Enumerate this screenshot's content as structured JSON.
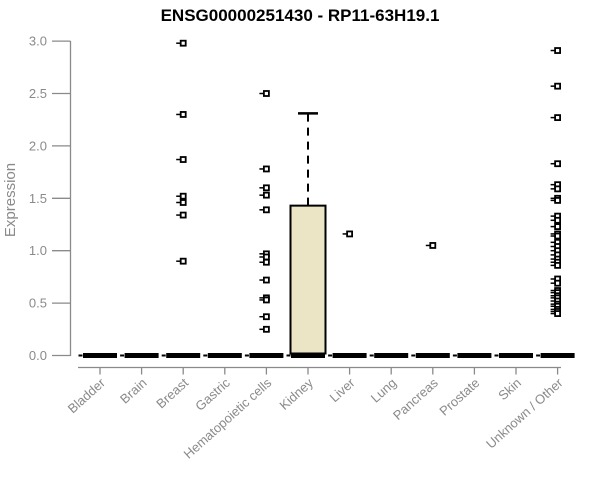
{
  "chart_data": {
    "type": "boxplot",
    "title": "ENSG00000251430 - RP11-63H19.1",
    "ylabel": "Expression",
    "xlabel": "",
    "ylim": [
      0.0,
      3.0
    ],
    "yticks": [
      "0.0",
      "0.5",
      "1.0",
      "1.5",
      "2.0",
      "2.5",
      "3.0"
    ],
    "grid": "off",
    "legend": "none",
    "colors": {
      "axis": "#8a8a8a",
      "tick_label": "#8a8a8a",
      "title": "#000000",
      "box_fill": "#ebe5c6",
      "box_stroke": "#000000",
      "point": "#000000",
      "zero_bar": "#000000"
    },
    "categories": [
      "Bladder",
      "Brain",
      "Breast",
      "Gastric",
      "Hematopoietic cells",
      "Kidney",
      "Liver",
      "Lung",
      "Pancreas",
      "Prostate",
      "Skin",
      "Unknown / Other"
    ],
    "boxes": [
      {
        "category": "Bladder",
        "q1": 0,
        "median": 0,
        "q3": 0,
        "whisker_low": 0,
        "whisker_high": 0,
        "outliers": []
      },
      {
        "category": "Brain",
        "q1": 0,
        "median": 0,
        "q3": 0,
        "whisker_low": 0,
        "whisker_high": 0,
        "outliers": []
      },
      {
        "category": "Breast",
        "q1": 0,
        "median": 0,
        "q3": 0,
        "whisker_low": 0,
        "whisker_high": 0,
        "outliers": [
          2.98,
          2.3,
          1.87,
          1.52,
          1.46,
          1.34,
          0.9
        ]
      },
      {
        "category": "Gastric",
        "q1": 0,
        "median": 0,
        "q3": 0,
        "whisker_low": 0,
        "whisker_high": 0,
        "outliers": []
      },
      {
        "category": "Hematopoietic cells",
        "q1": 0,
        "median": 0,
        "q3": 0,
        "whisker_low": 0,
        "whisker_high": 0,
        "outliers": [
          2.5,
          1.78,
          1.6,
          1.53,
          1.39,
          0.97,
          0.94,
          0.89,
          0.72,
          0.55,
          0.53,
          0.37,
          0.25
        ]
      },
      {
        "category": "Kidney",
        "q1": 0,
        "median": 0.02,
        "q3": 1.43,
        "whisker_low": 0,
        "whisker_high": 2.31,
        "outliers": []
      },
      {
        "category": "Liver",
        "q1": 0,
        "median": 0,
        "q3": 0,
        "whisker_low": 0,
        "whisker_high": 0,
        "outliers": [
          1.16
        ]
      },
      {
        "category": "Lung",
        "q1": 0,
        "median": 0,
        "q3": 0,
        "whisker_low": 0,
        "whisker_high": 0,
        "outliers": []
      },
      {
        "category": "Pancreas",
        "q1": 0,
        "median": 0,
        "q3": 0,
        "whisker_low": 0,
        "whisker_high": 0,
        "outliers": [
          1.05
        ]
      },
      {
        "category": "Prostate",
        "q1": 0,
        "median": 0,
        "q3": 0,
        "whisker_low": 0,
        "whisker_high": 0,
        "outliers": []
      },
      {
        "category": "Skin",
        "q1": 0,
        "median": 0,
        "q3": 0,
        "whisker_low": 0,
        "whisker_high": 0,
        "outliers": []
      },
      {
        "category": "Unknown / Other",
        "q1": 0,
        "median": 0,
        "q3": 0,
        "whisker_low": 0,
        "whisker_high": 0,
        "outliers": [
          2.91,
          2.57,
          2.27,
          1.83,
          1.63,
          1.59,
          1.5,
          1.48,
          1.33,
          1.29,
          1.23,
          1.16,
          1.14,
          1.08,
          1.04,
          1.0,
          0.96,
          0.92,
          0.89,
          0.86,
          0.73,
          0.69,
          0.62,
          0.6,
          0.57,
          0.55,
          0.52,
          0.49,
          0.47,
          0.44,
          0.42,
          0.4
        ]
      }
    ]
  }
}
